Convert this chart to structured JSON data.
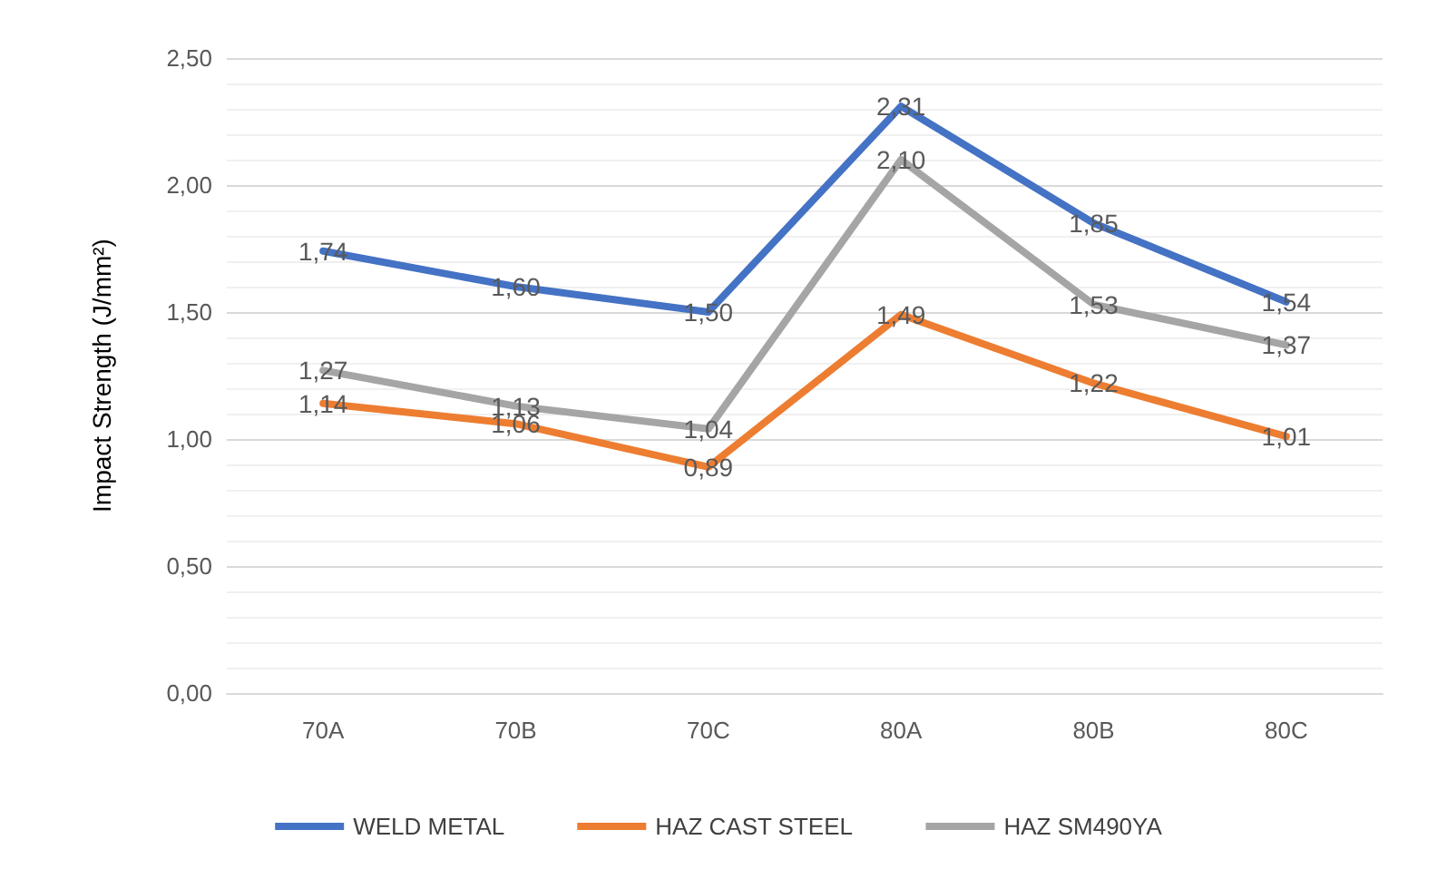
{
  "chart_data": {
    "type": "line",
    "ylabel": "Impact Strength (J/mm²)",
    "categories": [
      "70A",
      "70B",
      "70C",
      "80A",
      "80B",
      "80C"
    ],
    "series": [
      {
        "name": "WELD METAL",
        "color": "#4472c4",
        "values": [
          1.74,
          1.6,
          1.5,
          2.31,
          1.85,
          1.54
        ],
        "value_labels": [
          "1,74",
          "1,60",
          "1,50",
          "2,31",
          "1,85",
          "1,54"
        ]
      },
      {
        "name": "HAZ CAST STEEL",
        "color": "#ed7d31",
        "values": [
          1.14,
          1.06,
          0.89,
          1.49,
          1.22,
          1.01
        ],
        "value_labels": [
          "1,14",
          "1,06",
          "0,89",
          "1,49",
          "1,22",
          "1,01"
        ]
      },
      {
        "name": "HAZ SM490YA",
        "color": "#a5a5a5",
        "values": [
          1.27,
          1.13,
          1.04,
          2.1,
          1.53,
          1.37
        ],
        "value_labels": [
          "1,27",
          "1,13",
          "1,04",
          "2,10",
          "1,53",
          "1,37"
        ]
      }
    ],
    "ylim": [
      0,
      2.5
    ],
    "yticks": [
      {
        "value": 0,
        "label": "0,00"
      },
      {
        "value": 0.5,
        "label": "0,50"
      },
      {
        "value": 1,
        "label": "1,00"
      },
      {
        "value": 1.5,
        "label": "1,50"
      },
      {
        "value": 2,
        "label": "2,00"
      },
      {
        "value": 2.5,
        "label": "2,50"
      }
    ],
    "grid": true,
    "legend": "bottom",
    "marker": "none",
    "line_style": "solid"
  }
}
